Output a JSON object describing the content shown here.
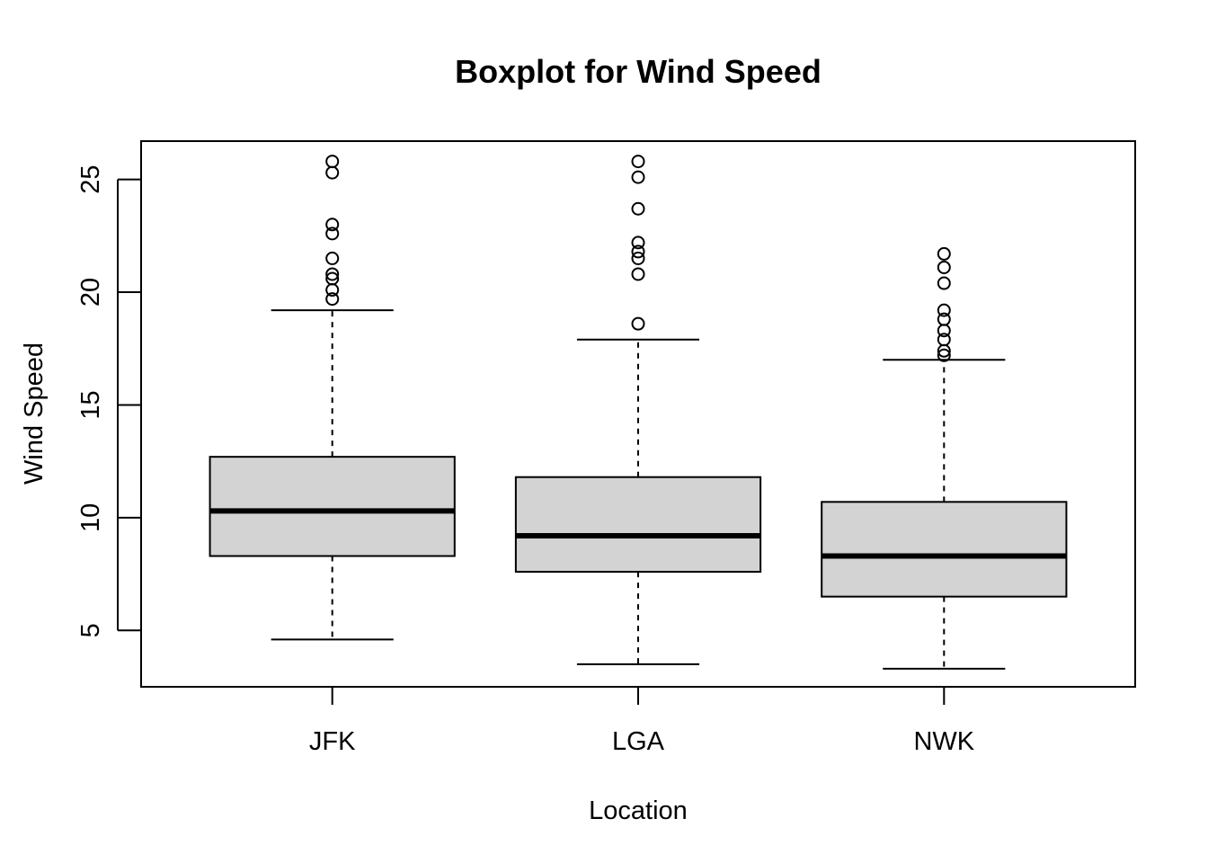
{
  "chart_data": {
    "type": "boxplot",
    "title": "Boxplot for Wind Speed",
    "xlabel": "Location",
    "ylabel": "Wind Speed",
    "categories": [
      "JFK",
      "LGA",
      "NWK"
    ],
    "ylim": [
      2.5,
      26.7
    ],
    "yticks": [
      5,
      10,
      15,
      20,
      25
    ],
    "grid": false,
    "legend": "none",
    "box_color": "#d3d3d3",
    "boxes": [
      {
        "name": "JFK",
        "whisker_low": 4.6,
        "q1": 8.3,
        "median": 10.3,
        "q3": 12.7,
        "whisker_high": 19.2,
        "outliers": [
          19.7,
          20.1,
          20.6,
          20.8,
          21.5,
          22.6,
          23.0,
          25.3,
          25.8
        ]
      },
      {
        "name": "LGA",
        "whisker_low": 3.5,
        "q1": 7.6,
        "median": 9.2,
        "q3": 11.8,
        "whisker_high": 17.9,
        "outliers": [
          18.6,
          20.8,
          21.5,
          21.8,
          22.2,
          23.7,
          25.1,
          25.8
        ]
      },
      {
        "name": "NWK",
        "whisker_low": 3.3,
        "q1": 6.5,
        "median": 8.3,
        "q3": 10.7,
        "whisker_high": 17.0,
        "outliers": [
          17.2,
          17.4,
          17.9,
          18.3,
          18.8,
          19.2,
          20.4,
          21.1,
          21.7
        ]
      }
    ]
  }
}
